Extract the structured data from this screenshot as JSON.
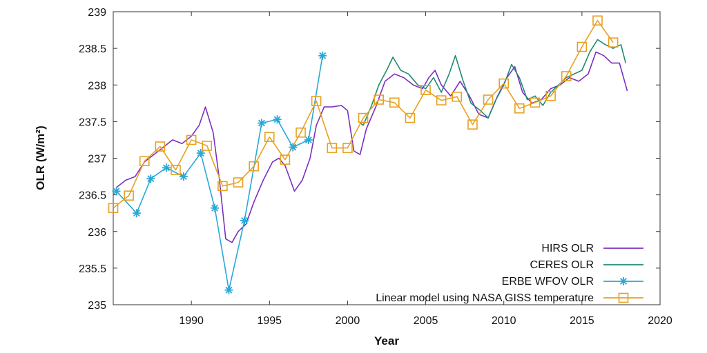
{
  "chart_data": {
    "type": "line",
    "xlabel": "Year",
    "ylabel": "OLR (W/m²)",
    "xlim": [
      1985,
      2020
    ],
    "ylim": [
      235,
      239
    ],
    "xticks": [
      1990,
      1995,
      2000,
      2005,
      2010,
      2015,
      2020
    ],
    "yticks": [
      235,
      235.5,
      236,
      236.5,
      237,
      237.5,
      238,
      238.5,
      239
    ],
    "xtick_labels": [
      "1990",
      "1995",
      "2000",
      "2005",
      "2010",
      "2015",
      "2020"
    ],
    "ytick_labels": [
      "235",
      "235.5",
      "236",
      "236.5",
      "237",
      "237.5",
      "238",
      "238.5",
      "239"
    ],
    "grid": false,
    "legend_position": "bottom-right",
    "series": [
      {
        "name": "HIRS OLR",
        "color": "#7b2fbf",
        "marker": "none",
        "x": [
          1985.2,
          1985.8,
          1986.4,
          1987.0,
          1987.6,
          1988.2,
          1988.8,
          1989.4,
          1990.0,
          1990.5,
          1990.9,
          1991.4,
          1991.8,
          1992.2,
          1992.6,
          1993.0,
          1993.5,
          1994.0,
          1994.6,
          1995.2,
          1995.6,
          1996.0,
          1996.6,
          1997.1,
          1997.6,
          1998.0,
          1998.5,
          1999.0,
          1999.6,
          2000.0,
          2000.4,
          2000.8,
          2001.2,
          2001.8,
          2002.4,
          2003.0,
          2003.6,
          2004.2,
          2004.8,
          2005.2,
          2005.6,
          2006.0,
          2006.6,
          2007.2,
          2007.8,
          2008.4,
          2009.0,
          2009.6,
          2010.2,
          2010.7,
          2011.2,
          2011.8,
          2012.4,
          2013.0,
          2013.6,
          2014.2,
          2014.8,
          2015.4,
          2015.9,
          2016.4,
          2016.9,
          2017.4,
          2017.9
        ],
        "y": [
          236.6,
          236.7,
          236.75,
          236.95,
          237.05,
          237.15,
          237.25,
          237.2,
          237.3,
          237.45,
          237.7,
          237.35,
          236.7,
          235.9,
          235.85,
          236.0,
          236.1,
          236.4,
          236.7,
          236.95,
          237.0,
          236.9,
          236.55,
          236.7,
          237.0,
          237.45,
          237.7,
          237.7,
          237.72,
          237.65,
          237.1,
          237.05,
          237.4,
          237.7,
          238.05,
          238.15,
          238.1,
          238.0,
          237.95,
          238.1,
          238.2,
          238.0,
          237.85,
          238.05,
          237.85,
          237.6,
          237.55,
          237.85,
          238.1,
          238.25,
          237.9,
          237.75,
          237.8,
          237.95,
          238.0,
          238.1,
          238.05,
          238.15,
          238.45,
          238.4,
          238.3,
          238.3,
          237.92
        ]
      },
      {
        "name": "CERES OLR",
        "color": "#1f8a70",
        "marker": "none",
        "x": [
          2000.7,
          2001.0,
          2001.5,
          2002.0,
          2002.5,
          2002.9,
          2003.4,
          2003.9,
          2004.5,
          2005.0,
          2005.5,
          2006.0,
          2006.5,
          2006.9,
          2007.4,
          2007.9,
          2008.5,
          2009.0,
          2009.5,
          2010.0,
          2010.5,
          2011.0,
          2011.5,
          2012.0,
          2012.5,
          2013.0,
          2013.5,
          2014.0,
          2014.5,
          2015.0,
          2015.5,
          2016.0,
          2016.5,
          2017.0,
          2017.5,
          2017.8
        ],
        "y": [
          237.5,
          237.45,
          237.7,
          238.0,
          238.2,
          238.38,
          238.2,
          238.15,
          238.0,
          237.95,
          238.1,
          237.9,
          238.15,
          238.4,
          238.05,
          237.75,
          237.65,
          237.55,
          237.8,
          238.0,
          238.28,
          238.1,
          237.8,
          237.85,
          237.72,
          237.9,
          238.0,
          238.1,
          238.15,
          238.2,
          238.45,
          238.62,
          238.55,
          238.5,
          238.55,
          238.3
        ]
      },
      {
        "name": "ERBE WFOV OLR",
        "color": "#2aa8d8",
        "marker": "asterisk",
        "x": [
          1985.2,
          1986.5,
          1987.4,
          1988.4,
          1989.5,
          1990.6,
          1991.5,
          1992.4,
          1993.4,
          1994.5,
          1995.5,
          1996.5,
          1997.5,
          1998.4
        ],
        "y": [
          236.55,
          236.25,
          236.72,
          236.87,
          236.75,
          237.07,
          236.32,
          235.2,
          236.15,
          237.48,
          237.53,
          237.15,
          237.25,
          238.4
        ]
      },
      {
        "name": "Linear model using NASA GISS temperature",
        "color": "#e8a020",
        "marker": "square",
        "x": [
          1985.0,
          1986.0,
          1987.0,
          1988.0,
          1989.0,
          1990.0,
          1991.0,
          1992.0,
          1993.0,
          1994.0,
          1995.0,
          1996.0,
          1997.0,
          1998.0,
          1999.0,
          2000.0,
          2001.0,
          2002.0,
          2003.0,
          2004.0,
          2005.0,
          2006.0,
          2007.0,
          2008.0,
          2009.0,
          2010.0,
          2011.0,
          2012.0,
          2013.0,
          2014.0,
          2015.0,
          2016.0,
          2017.0
        ],
        "y": [
          236.32,
          236.49,
          236.96,
          237.16,
          236.84,
          237.25,
          237.17,
          236.62,
          236.67,
          236.89,
          237.29,
          236.98,
          237.35,
          237.78,
          237.14,
          237.14,
          237.55,
          237.8,
          237.76,
          237.55,
          237.93,
          237.79,
          237.84,
          237.46,
          237.8,
          238.02,
          237.68,
          237.76,
          237.85,
          238.12,
          238.52,
          238.88,
          238.58
        ]
      }
    ]
  }
}
